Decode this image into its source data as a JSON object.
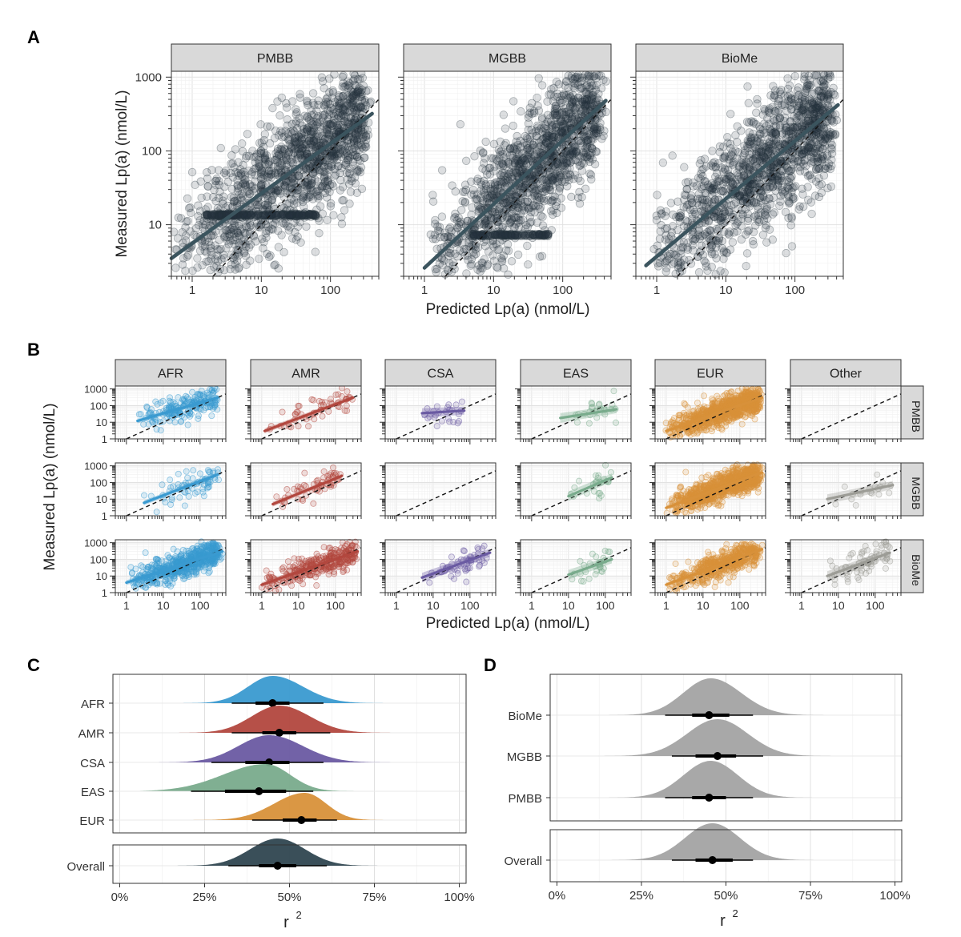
{
  "panel_labels": {
    "A": "A",
    "B": "B",
    "C": "C",
    "D": "D"
  },
  "colors": {
    "AFR": "#3a9ad0",
    "AMR": "#b2473e",
    "CSA": "#6a5aa2",
    "EAS": "#79ab8c",
    "EUR": "#d8913a",
    "Other": "#9c9c96",
    "overall_c": "#2f4650",
    "grey": "#a3a3a3",
    "fitA": "#3b545e"
  },
  "chart_data": [
    {
      "id": "A",
      "type": "scatter",
      "facets": [
        "PMBB",
        "MGBB",
        "BioMe"
      ],
      "xlabel": "Predicted Lp(a) (nmol/L)",
      "ylabel": "Measured Lp(a) (nmol/L)",
      "xscale": "log10",
      "yscale": "log10",
      "xlim": [
        0.5,
        500
      ],
      "ylim": [
        2,
        1200
      ],
      "xticks": [
        "1",
        "10",
        "100"
      ],
      "yticks": [
        "10",
        "100",
        "1000"
      ],
      "reference_line": "y = x (dashed)",
      "fits": [
        {
          "facet": "PMBB",
          "x": [
            0.5,
            400
          ],
          "y": [
            3.5,
            320
          ]
        },
        {
          "facet": "MGBB",
          "x": [
            1,
            420
          ],
          "y": [
            2.6,
            480
          ]
        },
        {
          "facet": "BioMe",
          "x": [
            0.7,
            420
          ],
          "y": [
            2.8,
            420
          ]
        }
      ]
    },
    {
      "id": "B",
      "type": "scatter",
      "columns": [
        "AFR",
        "AMR",
        "CSA",
        "EAS",
        "EUR",
        "Other"
      ],
      "rows": [
        "PMBB",
        "MGBB",
        "BioMe"
      ],
      "xlabel": "Predicted Lp(a) (nmol/L)",
      "ylabel": "Measured Lp(a) (nmol/L)",
      "xscale": "log10",
      "yscale": "log10",
      "xlim": [
        0.5,
        500
      ],
      "ylim": [
        1,
        1500
      ],
      "xticks": [
        "1",
        "10",
        "100"
      ],
      "yticks": [
        "1",
        "10",
        "100",
        "1000"
      ],
      "fits": [
        {
          "col": "AFR",
          "row": "PMBB",
          "x": [
            2,
            300
          ],
          "y": [
            12,
            300
          ]
        },
        {
          "col": "AMR",
          "row": "PMBB",
          "x": [
            1.2,
            300
          ],
          "y": [
            3,
            300
          ]
        },
        {
          "col": "CSA",
          "row": "PMBB",
          "x": [
            5,
            70
          ],
          "y": [
            35,
            50
          ]
        },
        {
          "col": "EAS",
          "row": "PMBB",
          "x": [
            6,
            200
          ],
          "y": [
            18,
            60
          ]
        },
        {
          "col": "EUR",
          "row": "PMBB",
          "x": [
            1,
            400
          ],
          "y": [
            3,
            300
          ]
        },
        {
          "col": "AFR",
          "row": "MGBB",
          "x": [
            3,
            300
          ],
          "y": [
            6,
            300
          ]
        },
        {
          "col": "AMR",
          "row": "MGBB",
          "x": [
            2,
            150
          ],
          "y": [
            5,
            250
          ]
        },
        {
          "col": "EAS",
          "row": "MGBB",
          "x": [
            10,
            150
          ],
          "y": [
            15,
            200
          ]
        },
        {
          "col": "EUR",
          "row": "MGBB",
          "x": [
            1,
            400
          ],
          "y": [
            3,
            400
          ]
        },
        {
          "col": "Other",
          "row": "MGBB",
          "x": [
            5,
            300
          ],
          "y": [
            10,
            70
          ]
        },
        {
          "col": "AFR",
          "row": "BioMe",
          "x": [
            1,
            400
          ],
          "y": [
            4,
            300
          ]
        },
        {
          "col": "AMR",
          "row": "BioMe",
          "x": [
            1,
            400
          ],
          "y": [
            3,
            300
          ]
        },
        {
          "col": "CSA",
          "row": "BioMe",
          "x": [
            5,
            350
          ],
          "y": [
            8,
            250
          ]
        },
        {
          "col": "EAS",
          "row": "BioMe",
          "x": [
            10,
            150
          ],
          "y": [
            12,
            100
          ]
        },
        {
          "col": "EUR",
          "row": "BioMe",
          "x": [
            1,
            400
          ],
          "y": [
            3,
            400
          ]
        },
        {
          "col": "Other",
          "row": "BioMe",
          "x": [
            5,
            250
          ],
          "y": [
            10,
            250
          ]
        }
      ]
    },
    {
      "id": "C",
      "type": "area",
      "kind": "halfeye",
      "categories": [
        "AFR",
        "AMR",
        "CSA",
        "EAS",
        "EUR"
      ],
      "overall_label": "Overall",
      "xlabel": "r",
      "xlabel_sup": "2",
      "xlim": [
        -0.02,
        1.02
      ],
      "xticks": [
        "0%",
        "25%",
        "50%",
        "75%",
        "100%"
      ],
      "series": [
        {
          "name": "AFR",
          "mode": 0.45,
          "sd_l": 0.04,
          "sd_r": 0.05,
          "median": 0.45,
          "i66": [
            0.4,
            0.5
          ],
          "i95": [
            0.33,
            0.6
          ]
        },
        {
          "name": "AMR",
          "mode": 0.47,
          "sd_l": 0.045,
          "sd_r": 0.05,
          "median": 0.47,
          "i66": [
            0.42,
            0.52
          ],
          "i95": [
            0.33,
            0.62
          ]
        },
        {
          "name": "CSA",
          "mode": 0.44,
          "sd_l": 0.05,
          "sd_r": 0.055,
          "median": 0.44,
          "i66": [
            0.37,
            0.5
          ],
          "i95": [
            0.27,
            0.6
          ]
        },
        {
          "name": "EAS",
          "mode": 0.43,
          "sd_l": 0.07,
          "sd_r": 0.04,
          "median": 0.41,
          "i66": [
            0.31,
            0.49
          ],
          "i95": [
            0.21,
            0.57
          ]
        },
        {
          "name": "EUR",
          "mode": 0.545,
          "sd_l": 0.05,
          "sd_r": 0.035,
          "median": 0.535,
          "i66": [
            0.48,
            0.58
          ],
          "i95": [
            0.39,
            0.64
          ]
        },
        {
          "name": "Overall",
          "mode": 0.465,
          "sd_l": 0.045,
          "sd_r": 0.045,
          "median": 0.465,
          "i66": [
            0.41,
            0.52
          ],
          "i95": [
            0.32,
            0.61
          ]
        }
      ]
    },
    {
      "id": "D",
      "type": "area",
      "kind": "halfeye",
      "categories": [
        "BioMe",
        "MGBB",
        "PMBB"
      ],
      "overall_label": "Overall",
      "xlabel": "r",
      "xlabel_sup": "2",
      "xlim": [
        -0.02,
        1.02
      ],
      "xticks": [
        "0%",
        "25%",
        "50%",
        "75%",
        "100%"
      ],
      "series": [
        {
          "name": "BioMe",
          "mode": 0.455,
          "sd_l": 0.045,
          "sd_r": 0.05,
          "median": 0.45,
          "i66": [
            0.4,
            0.51
          ],
          "i95": [
            0.32,
            0.58
          ]
        },
        {
          "name": "MGBB",
          "mode": 0.475,
          "sd_l": 0.05,
          "sd_r": 0.05,
          "median": 0.475,
          "i66": [
            0.41,
            0.53
          ],
          "i95": [
            0.34,
            0.61
          ]
        },
        {
          "name": "PMBB",
          "mode": 0.455,
          "sd_l": 0.045,
          "sd_r": 0.045,
          "median": 0.45,
          "i66": [
            0.4,
            0.5
          ],
          "i95": [
            0.32,
            0.58
          ]
        },
        {
          "name": "Overall",
          "mode": 0.46,
          "sd_l": 0.045,
          "sd_r": 0.045,
          "median": 0.46,
          "i66": [
            0.41,
            0.52
          ],
          "i95": [
            0.34,
            0.58
          ]
        }
      ]
    }
  ]
}
